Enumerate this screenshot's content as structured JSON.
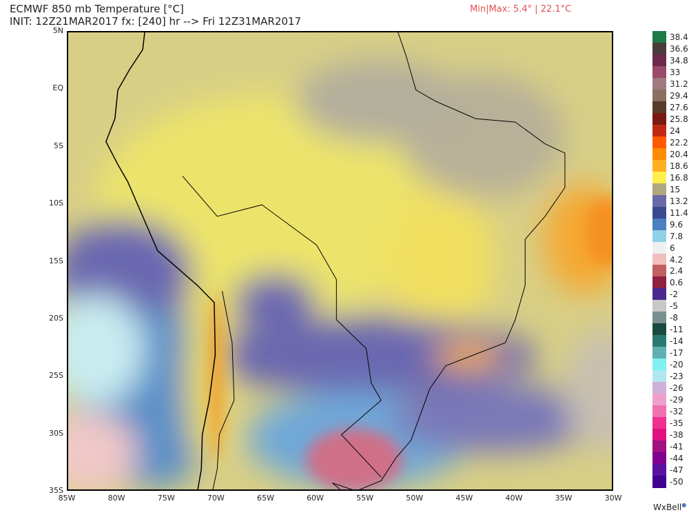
{
  "header": {
    "title": "ECMWF 850 mb Temperature [°C]",
    "subtitle": "INIT: 12Z21MAR2017 fx: [240] hr --> Fri 12Z31MAR2017",
    "minmax": "Min|Max: 5.4° | 22.1°C"
  },
  "map": {
    "lat_labels": [
      "5N",
      "EQ",
      "5S",
      "10S",
      "15S",
      "20S",
      "25S",
      "30S",
      "35S"
    ],
    "lon_labels": [
      "85W",
      "80W",
      "75W",
      "70W",
      "65W",
      "60W",
      "55W",
      "50W",
      "45W",
      "40W",
      "35W",
      "30W"
    ],
    "lat_range": [
      5,
      -35
    ],
    "lon_range": [
      -85,
      -30
    ]
  },
  "colorbar": {
    "labels": [
      "38.4",
      "36.6",
      "34.8",
      "33",
      "31.2",
      "29.4",
      "27.6",
      "25.8",
      "24",
      "22.2",
      "20.4",
      "18.6",
      "16.8",
      "15",
      "13.2",
      "11.4",
      "9.6",
      "7.8",
      "6",
      "4.2",
      "2.4",
      "0.6",
      "-2",
      "-5",
      "-8",
      "-11",
      "-14",
      "-17",
      "-20",
      "-23",
      "-26",
      "-29",
      "-32",
      "-35",
      "-38",
      "-41",
      "-44",
      "-47",
      "-50"
    ],
    "colors": [
      "#1d7a4a",
      "#4b3b3b",
      "#6e2a4a",
      "#9a4a6a",
      "#a07a80",
      "#8a7060",
      "#5a3a2a",
      "#7a1a10",
      "#c02a10",
      "#ff5a00",
      "#ff8c00",
      "#ffb020",
      "#ffee50",
      "#b0a880",
      "#6a6aa8",
      "#3a4a90",
      "#4a80c0",
      "#90d0e8",
      "#f0f0f0",
      "#f0c0c0",
      "#c06060",
      "#902040",
      "#4a2a90",
      "#c8c8c8",
      "#7a9090",
      "#1a4a40",
      "#2a7a70",
      "#60b0b0",
      "#80f0f0",
      "#b0e8f0",
      "#d0b0d8",
      "#f0a0c8",
      "#f070b0",
      "#f03090",
      "#e01080",
      "#a01080",
      "#800090",
      "#5a10a0",
      "#400090"
    ]
  },
  "brand": "WxBell"
}
